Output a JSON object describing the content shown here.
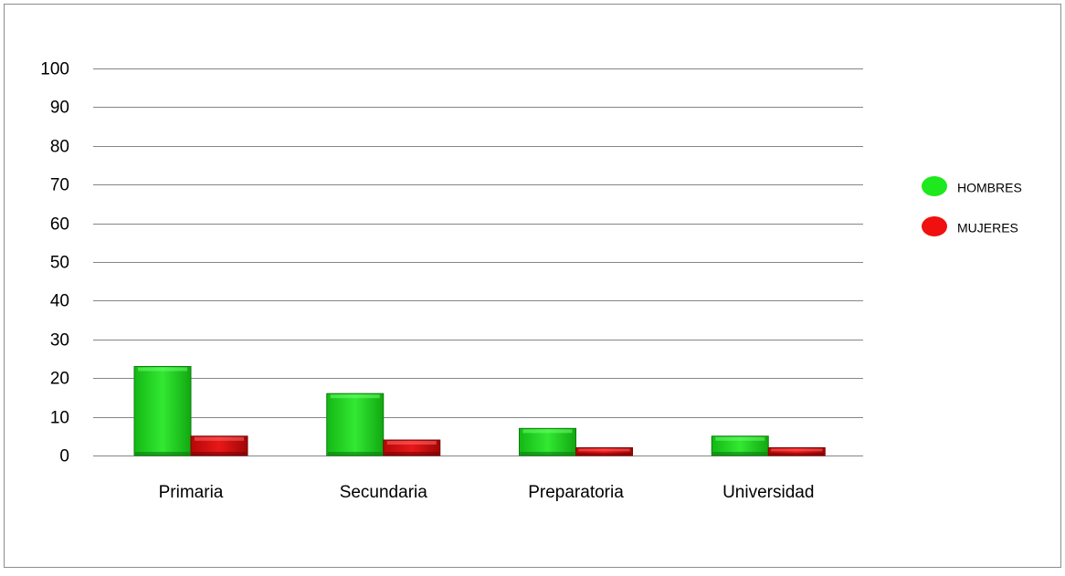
{
  "chart_data": {
    "type": "bar",
    "categories": [
      "Primaria",
      "Secundaria",
      "Preparatoria",
      "Universidad"
    ],
    "series": [
      {
        "name": "HOMBRES",
        "values": [
          23,
          16,
          7,
          5
        ],
        "color": "#1fd31f"
      },
      {
        "name": "MUJERES",
        "values": [
          5,
          4,
          2,
          2
        ],
        "color": "#e01010"
      }
    ],
    "ylim": [
      0,
      100
    ],
    "yticks": [
      "0",
      "10",
      "20",
      "30",
      "40",
      "50",
      "60",
      "70",
      "80",
      "90",
      "100"
    ],
    "ytick_values": [
      0,
      10,
      20,
      30,
      40,
      50,
      60,
      70,
      80,
      90,
      100
    ],
    "grid": true,
    "legend_position": "right",
    "bar_style": "3d-bevel"
  }
}
